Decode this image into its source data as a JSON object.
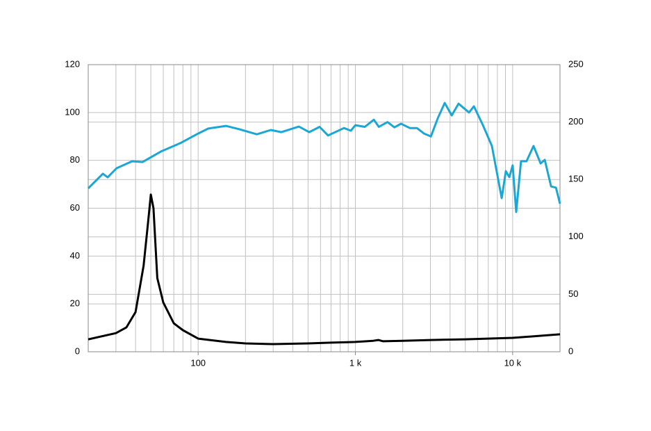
{
  "chart_data": {
    "type": "line",
    "xscale": "log",
    "grid": true,
    "xlim": [
      20,
      20000
    ],
    "xticks": [
      100,
      {
        "value": 1000,
        "label": "1 k"
      },
      {
        "value": 10000,
        "label": "10 k"
      }
    ],
    "x_minor_grid": [
      20,
      30,
      40,
      50,
      60,
      70,
      80,
      90,
      100,
      200,
      300,
      400,
      500,
      600,
      700,
      800,
      900,
      1000,
      2000,
      3000,
      4000,
      5000,
      6000,
      7000,
      8000,
      9000,
      10000,
      20000
    ],
    "ylim": [
      0,
      120
    ],
    "yticks": [
      0,
      20,
      40,
      60,
      80,
      100,
      120
    ],
    "y2lim": [
      0,
      250
    ],
    "y2ticks": [
      0,
      50,
      100,
      150,
      200,
      250
    ],
    "series": [
      {
        "color": "#1aa7d6",
        "x": [
          20,
          24.8,
          26.6,
          30.3,
          38,
          44.3,
          58,
          77,
          100,
          116,
          150,
          183,
          236,
          290,
          338,
          437,
          508,
          592,
          670,
          846,
          936,
          1000,
          1148,
          1310,
          1410,
          1600,
          1770,
          1950,
          2220,
          2460,
          2730,
          3020,
          3340,
          3700,
          4100,
          4530,
          5280,
          5670,
          6470,
          7380,
          8520,
          9050,
          9530,
          10000,
          10540,
          11300,
          12250,
          13580,
          15060,
          16000,
          17560,
          18860,
          20000
        ],
        "values": [
          68.3,
          74.4,
          72.9,
          76.7,
          79.6,
          79.3,
          83.7,
          87.2,
          91.2,
          93.3,
          94.4,
          93,
          90.9,
          92.7,
          91.8,
          94.1,
          91.8,
          94,
          90.4,
          93.5,
          92.4,
          94.7,
          94,
          97,
          94,
          96,
          93.8,
          95.3,
          93.5,
          93.5,
          91.2,
          90,
          97.6,
          104,
          98.8,
          103.7,
          100,
          102.6,
          94.7,
          86,
          64.2,
          75.5,
          73,
          77.9,
          58.4,
          79.6,
          79.6,
          86,
          78.7,
          80.2,
          69.1,
          68.6,
          61.9
        ]
      },
      {
        "color": "#000000",
        "x": [
          20,
          30,
          35,
          40,
          45,
          48,
          50,
          52,
          55,
          60,
          70,
          80,
          100,
          150,
          200,
          300,
          500,
          700,
          1000,
          1300,
          1400,
          1500,
          2000,
          3000,
          5000,
          10000,
          20000
        ],
        "values": [
          5.2,
          7.8,
          10.2,
          16.6,
          36,
          54,
          65.7,
          60,
          30.8,
          20.6,
          11.9,
          9,
          5.5,
          4.1,
          3.5,
          3.2,
          3.5,
          3.8,
          4.1,
          4.6,
          4.9,
          4.4,
          4.6,
          4.9,
          5.2,
          5.8,
          7.3
        ]
      }
    ]
  }
}
